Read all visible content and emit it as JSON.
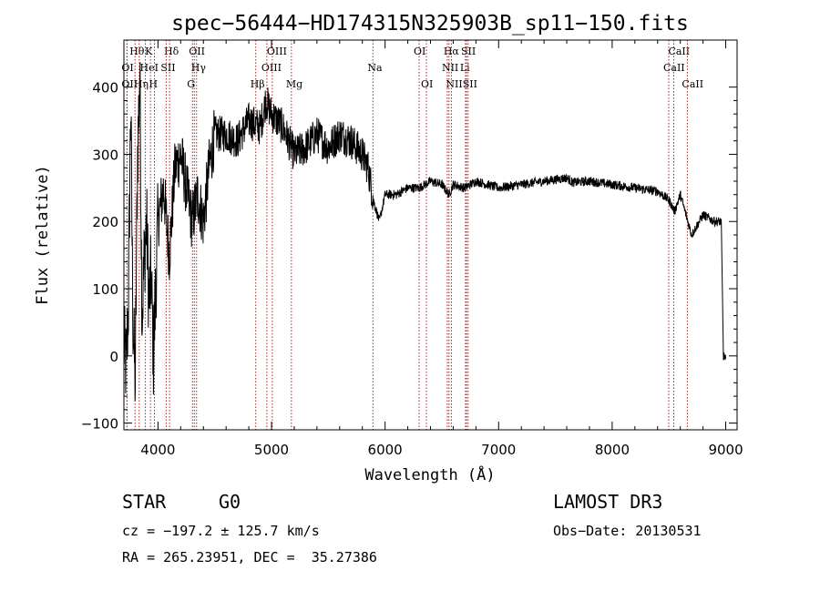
{
  "chart_data": {
    "type": "line",
    "title": "spec−56444−HD174315N325903B_sp11−150.fits",
    "xlabel": "Wavelength (Å)",
    "ylabel": "Flux (relative)",
    "xlim": [
      3700,
      9100
    ],
    "ylim": [
      -110,
      470
    ],
    "x_ticks": [
      4000,
      5000,
      6000,
      7000,
      8000,
      9000
    ],
    "y_ticks": [
      -100,
      0,
      100,
      200,
      300,
      400
    ],
    "grid": false,
    "line_color": "#000000",
    "marker_color": "#b22222",
    "series": [
      {
        "x": [
          3700,
          3720,
          3740,
          3760,
          3780,
          3800,
          3820,
          3840,
          3860,
          3880,
          3900,
          3920,
          3940,
          3960,
          3980,
          4000,
          4050,
          4100,
          4150,
          4200,
          4250,
          4300,
          4350,
          4400,
          4450,
          4500,
          4600,
          4700,
          4800,
          4900,
          4950,
          5000,
          5100,
          5200,
          5300,
          5400,
          5500,
          5600,
          5700,
          5800,
          5850,
          5900,
          5950,
          6000,
          6100,
          6200,
          6300,
          6400,
          6500,
          6563,
          6600,
          6700,
          6800,
          6900,
          7000,
          7200,
          7400,
          7600,
          7650,
          7800,
          8000,
          8200,
          8400,
          8500,
          8550,
          8600,
          8650,
          8700,
          8800,
          8900,
          8960,
          8980,
          9000
        ],
        "y": [
          20,
          -20,
          80,
          380,
          50,
          -40,
          300,
          420,
          60,
          150,
          200,
          80,
          120,
          0,
          100,
          200,
          250,
          150,
          280,
          300,
          250,
          200,
          240,
          200,
          280,
          330,
          330,
          320,
          350,
          340,
          380,
          360,
          340,
          300,
          310,
          330,
          310,
          330,
          320,
          300,
          280,
          230,
          200,
          240,
          240,
          250,
          250,
          260,
          255,
          240,
          255,
          250,
          260,
          255,
          250,
          255,
          260,
          265,
          258,
          260,
          255,
          250,
          245,
          232,
          215,
          240,
          210,
          180,
          210,
          200,
          200,
          0,
          -5
        ]
      }
    ],
    "line_markers": [
      {
        "label": "Hθ",
        "x": 3798,
        "row": 1
      },
      {
        "label": "K",
        "x": 3934,
        "row": 1
      },
      {
        "label": "Hδ",
        "x": 4102,
        "row": 1
      },
      {
        "label": "OII",
        "x": 4320,
        "row": 1
      },
      {
        "label": "OIII",
        "x": 5007,
        "row": 1
      },
      {
        "label": "OI",
        "x": 6300,
        "row": 1
      },
      {
        "label": "Hα",
        "x": 6563,
        "row": 1
      },
      {
        "label": "SII",
        "x": 6717,
        "row": 1
      },
      {
        "label": "CaII",
        "x": 8542,
        "row": 1
      },
      {
        "label": "OI",
        "x": 3727,
        "row": 2
      },
      {
        "label": "HeI",
        "x": 3889,
        "row": 2
      },
      {
        "label": "SII",
        "x": 4072,
        "row": 2
      },
      {
        "label": "Hγ",
        "x": 4340,
        "row": 2
      },
      {
        "label": "OIII",
        "x": 4959,
        "row": 2
      },
      {
        "label": "Na",
        "x": 5893,
        "row": 2
      },
      {
        "label": "NII",
        "x": 6548,
        "row": 2
      },
      {
        "label": "Li",
        "x": 6708,
        "row": 2
      },
      {
        "label": "CaII",
        "x": 8498,
        "row": 2
      },
      {
        "label": "OII",
        "x": 3727,
        "row": 3
      },
      {
        "label": "Hη",
        "x": 3835,
        "row": 3
      },
      {
        "label": "H",
        "x": 3969,
        "row": 3
      },
      {
        "label": "G",
        "x": 4304,
        "row": 3
      },
      {
        "label": "Hβ",
        "x": 4861,
        "row": 3
      },
      {
        "label": "Mg",
        "x": 5175,
        "row": 3
      },
      {
        "label": "OI",
        "x": 6364,
        "row": 3
      },
      {
        "label": "NII",
        "x": 6584,
        "row": 3
      },
      {
        "label": "SII",
        "x": 6731,
        "row": 3
      },
      {
        "label": "CaII",
        "x": 8662,
        "row": 3
      }
    ]
  },
  "info": {
    "object_type": "STAR",
    "subclass": "G0",
    "survey": "LAMOST DR3",
    "cz": "cz = −197.2 ± 125.7 km/s",
    "obs_date": "Obs−Date: 20130531",
    "coords": "RA = 265.23951, DEC =  35.27386"
  }
}
